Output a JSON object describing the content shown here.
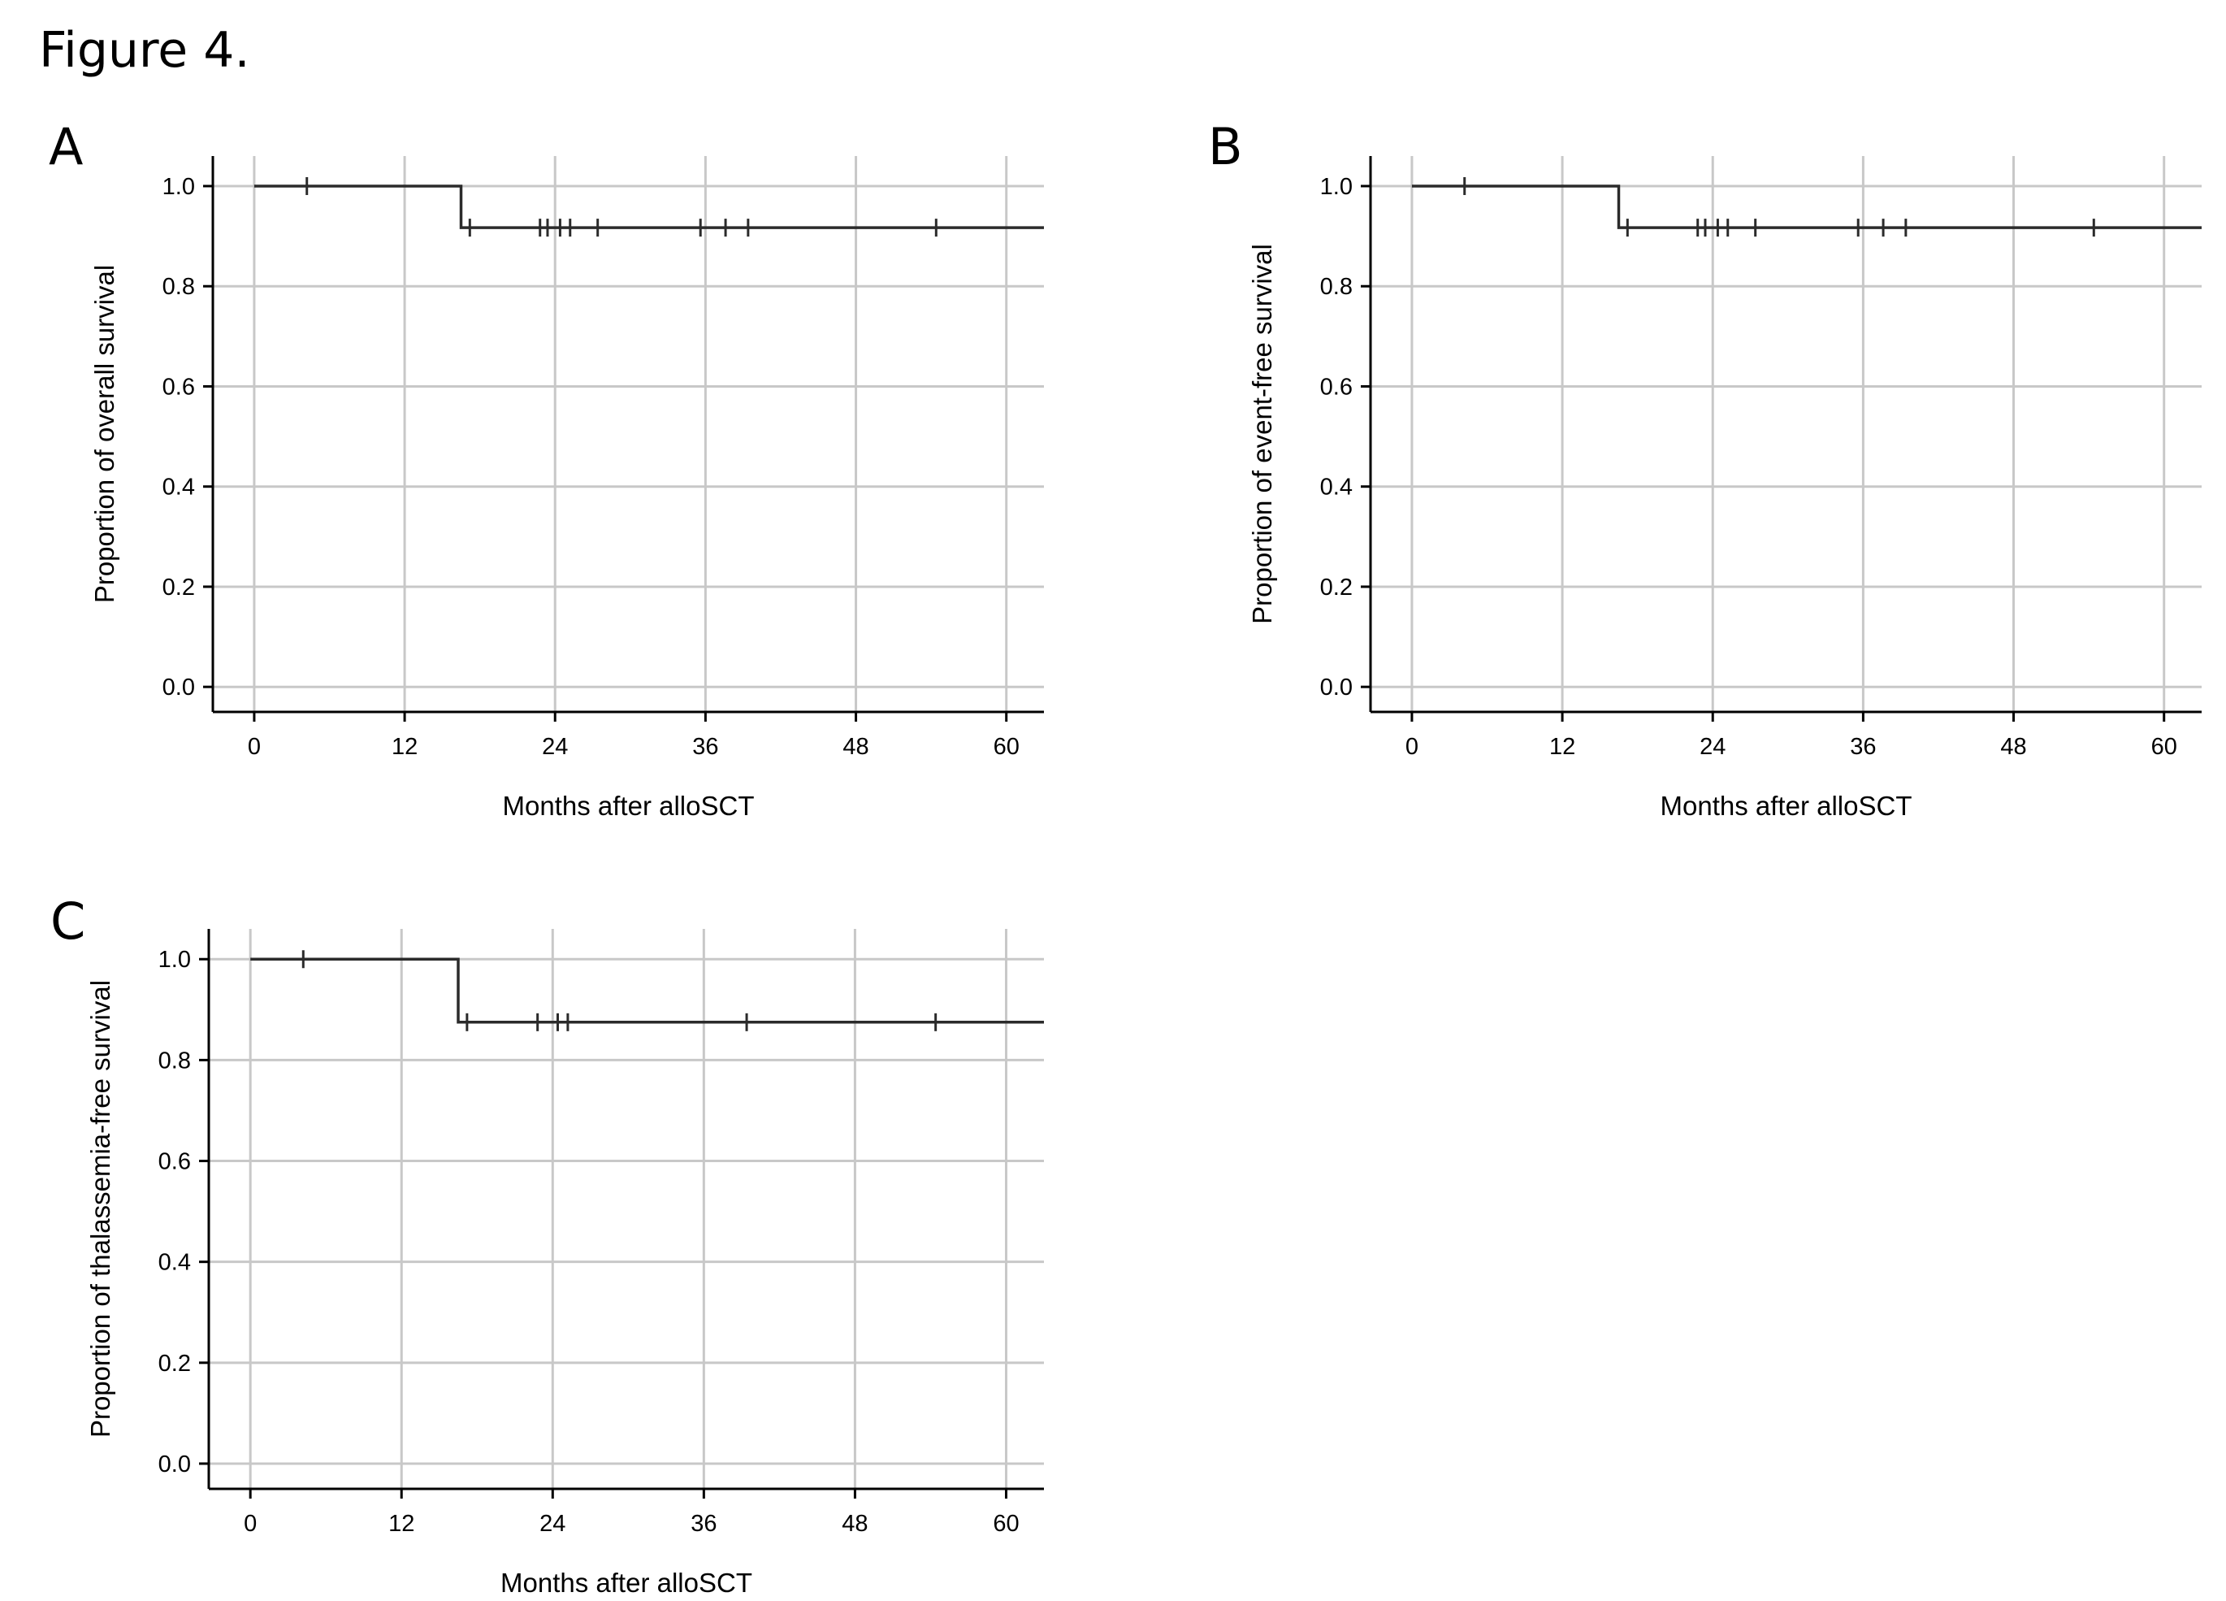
{
  "figure_title": "Figure 4.",
  "chart_data": [
    {
      "panel": "A",
      "type": "line",
      "subtype": "kaplan-meier step",
      "xlabel": "Months after alloSCT",
      "ylabel": "Proportion of overall survival",
      "xticks": [
        0,
        12,
        24,
        36,
        48,
        60
      ],
      "yticks": [
        0.0,
        0.2,
        0.4,
        0.6,
        0.8,
        1.0
      ],
      "xlim": [
        -3.3,
        63
      ],
      "ylim": [
        -0.05,
        1.06
      ],
      "grid": true,
      "steps": [
        {
          "x": 0,
          "y": 1.0
        },
        {
          "x": 16.5,
          "y": 1.0
        },
        {
          "x": 16.5,
          "y": 0.917
        },
        {
          "x": 63,
          "y": 0.917
        }
      ],
      "censored": [
        {
          "x": 4.2,
          "y": 1.0
        },
        {
          "x": 17.2,
          "y": 0.917
        },
        {
          "x": 22.8,
          "y": 0.917
        },
        {
          "x": 23.4,
          "y": 0.917
        },
        {
          "x": 24.4,
          "y": 0.917
        },
        {
          "x": 25.2,
          "y": 0.917
        },
        {
          "x": 27.4,
          "y": 0.917
        },
        {
          "x": 35.6,
          "y": 0.917
        },
        {
          "x": 37.6,
          "y": 0.917
        },
        {
          "x": 39.4,
          "y": 0.917
        },
        {
          "x": 54.4,
          "y": 0.917
        }
      ]
    },
    {
      "panel": "B",
      "type": "line",
      "subtype": "kaplan-meier step",
      "xlabel": "Months after alloSCT",
      "ylabel": "Proportion of event-free survival",
      "xticks": [
        0,
        12,
        24,
        36,
        48,
        60
      ],
      "yticks": [
        0.0,
        0.2,
        0.4,
        0.6,
        0.8,
        1.0
      ],
      "xlim": [
        -3.3,
        63
      ],
      "ylim": [
        -0.05,
        1.06
      ],
      "grid": true,
      "steps": [
        {
          "x": 0,
          "y": 1.0
        },
        {
          "x": 16.5,
          "y": 1.0
        },
        {
          "x": 16.5,
          "y": 0.917
        },
        {
          "x": 63,
          "y": 0.917
        }
      ],
      "censored": [
        {
          "x": 4.2,
          "y": 1.0
        },
        {
          "x": 17.2,
          "y": 0.917
        },
        {
          "x": 22.8,
          "y": 0.917
        },
        {
          "x": 23.4,
          "y": 0.917
        },
        {
          "x": 24.4,
          "y": 0.917
        },
        {
          "x": 25.2,
          "y": 0.917
        },
        {
          "x": 27.4,
          "y": 0.917
        },
        {
          "x": 35.6,
          "y": 0.917
        },
        {
          "x": 37.6,
          "y": 0.917
        },
        {
          "x": 39.4,
          "y": 0.917
        },
        {
          "x": 54.4,
          "y": 0.917
        }
      ]
    },
    {
      "panel": "C",
      "type": "line",
      "subtype": "kaplan-meier step",
      "xlabel": "Months after alloSCT",
      "ylabel": "Proportion of thalassemia-free survival",
      "xticks": [
        0,
        12,
        24,
        36,
        48,
        60
      ],
      "yticks": [
        0.0,
        0.2,
        0.4,
        0.6,
        0.8,
        1.0
      ],
      "xlim": [
        -3.3,
        63
      ],
      "ylim": [
        -0.05,
        1.06
      ],
      "grid": true,
      "steps": [
        {
          "x": 0,
          "y": 1.0
        },
        {
          "x": 16.5,
          "y": 1.0
        },
        {
          "x": 16.5,
          "y": 0.875
        },
        {
          "x": 63,
          "y": 0.875
        }
      ],
      "censored": [
        {
          "x": 4.2,
          "y": 1.0
        },
        {
          "x": 17.2,
          "y": 0.875
        },
        {
          "x": 22.8,
          "y": 0.875
        },
        {
          "x": 24.4,
          "y": 0.875
        },
        {
          "x": 25.2,
          "y": 0.875
        },
        {
          "x": 39.4,
          "y": 0.875
        },
        {
          "x": 54.4,
          "y": 0.875
        }
      ]
    }
  ]
}
